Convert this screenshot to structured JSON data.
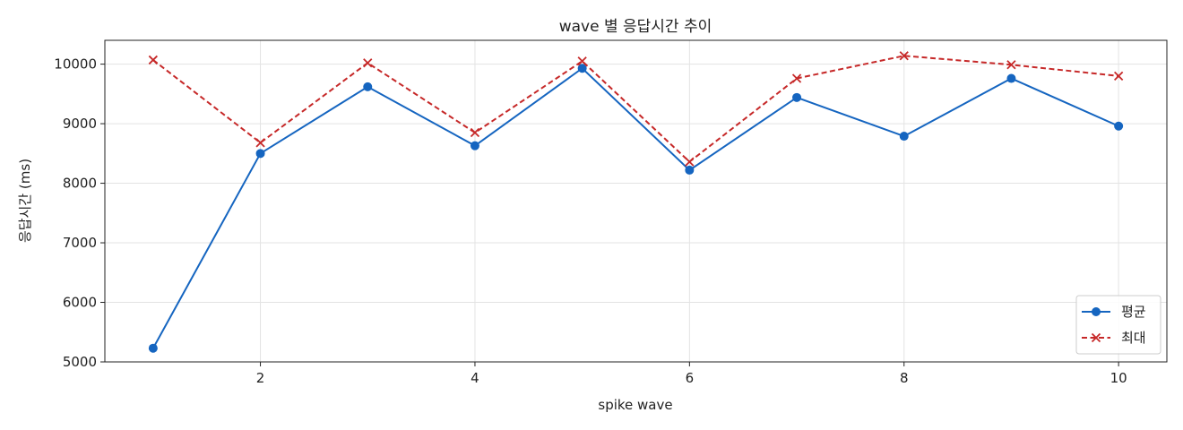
{
  "chart_data": {
    "type": "line",
    "title": "wave 별 응답시간 추이",
    "xlabel": "spike wave",
    "ylabel": "응답시간 (ms)",
    "x": [
      1,
      2,
      3,
      4,
      5,
      6,
      7,
      8,
      9,
      10
    ],
    "x_ticks": [
      2,
      4,
      6,
      8,
      10
    ],
    "y_ticks": [
      5000,
      6000,
      7000,
      8000,
      9000,
      10000
    ],
    "xlim": [
      0.55,
      10.45
    ],
    "ylim": [
      5000,
      10400
    ],
    "grid": true,
    "legend_position": "bottom-right",
    "series": [
      {
        "name": "평균",
        "values": [
          5230,
          8500,
          9620,
          8630,
          9930,
          8220,
          9440,
          8790,
          9760,
          8960
        ],
        "color": "#1565c0",
        "marker": "circle",
        "line_style": "solid"
      },
      {
        "name": "최대",
        "values": [
          10070,
          8680,
          10020,
          8850,
          10050,
          8360,
          9760,
          10140,
          9990,
          9800
        ],
        "color": "#c62828",
        "marker": "x",
        "line_style": "dashed"
      }
    ]
  }
}
